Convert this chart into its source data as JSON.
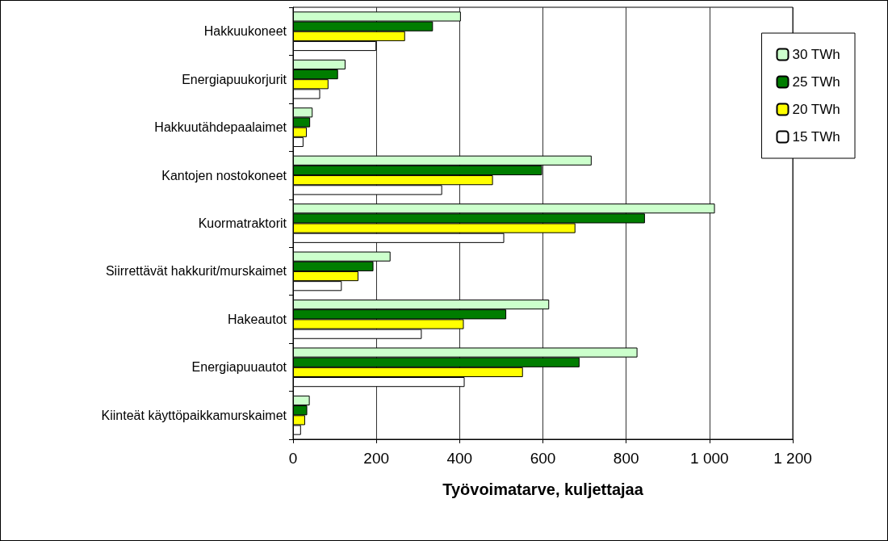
{
  "chart_data": {
    "type": "bar",
    "orientation": "horizontal",
    "xlabel": "Työvoimatarve, kuljettajaa",
    "categories": [
      "Hakkuukoneet",
      "Energiapuukorjurit",
      "Hakkuutähdepaalaimet",
      "Kantojen nostokoneet",
      "Kuormatraktorit",
      "Siirrettävät hakkurit/murskaimet",
      "Hakeautot",
      "Energiapuuautot",
      "Kiinteät käyttöpaikkamurskaimet"
    ],
    "series": [
      {
        "name": "30 TWh",
        "color": "#ccffcc",
        "values": [
          403,
          126,
          47,
          717,
          1013,
          234,
          615,
          827,
          40
        ]
      },
      {
        "name": "25 TWh",
        "color": "#007d00",
        "values": [
          336,
          108,
          41,
          598,
          845,
          193,
          512,
          688,
          34
        ]
      },
      {
        "name": "20 TWh",
        "color": "#ffff00",
        "values": [
          269,
          85,
          33,
          480,
          678,
          157,
          410,
          552,
          29
        ]
      },
      {
        "name": "15 TWh",
        "color": "#ffffff",
        "values": [
          200,
          65,
          25,
          358,
          507,
          117,
          309,
          412,
          19
        ]
      }
    ],
    "xlim": [
      0,
      1200
    ],
    "xticks": [
      0,
      200,
      400,
      600,
      800,
      {
        "value": 1000,
        "label": "1 000"
      },
      {
        "value": 1200,
        "label": "1 200"
      }
    ],
    "grid": "x",
    "legend": "top right"
  }
}
